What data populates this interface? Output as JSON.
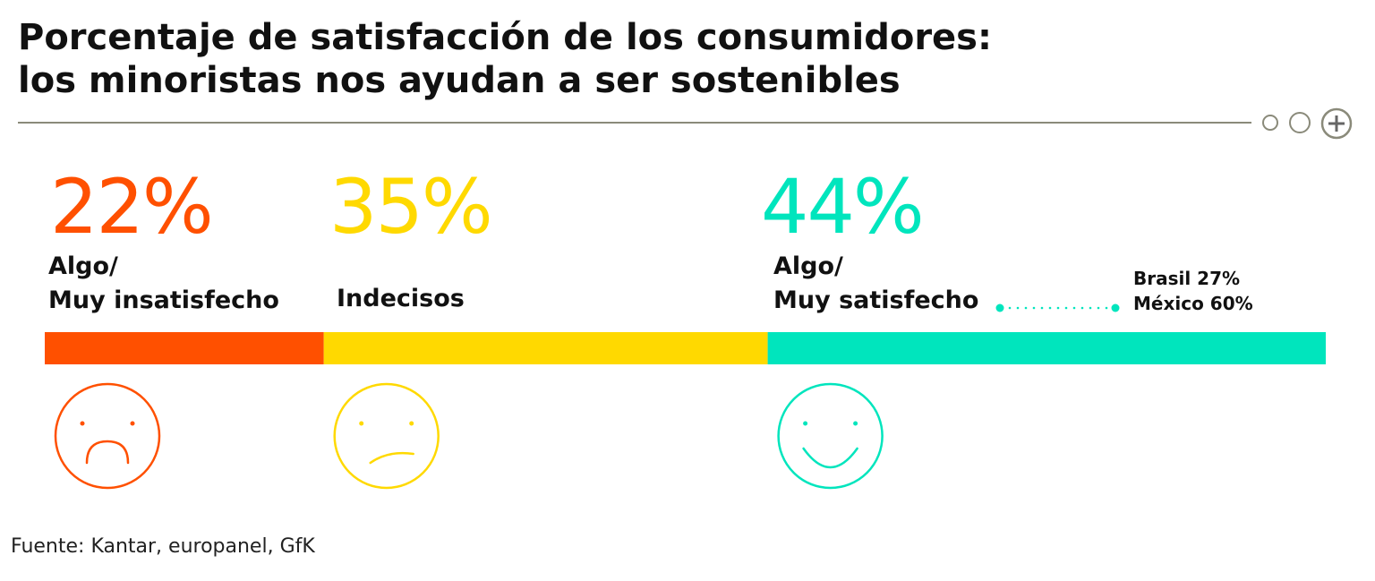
{
  "header": {
    "title_line1": "Porcentaje de satisfacción de los consumidores:",
    "title_line2": "los minoristas nos ayudan a ser sostenibles"
  },
  "chart_data": {
    "type": "bar",
    "orientation": "horizontal-stacked",
    "title": "Porcentaje de satisfacción de los consumidores: los minoristas nos ayudan a ser sostenibles",
    "segments": [
      {
        "label": "Algo/ Muy insatisfecho",
        "label_line1": "Algo/",
        "label_line2": "Muy insatisfecho",
        "value": 22,
        "value_label": "22%",
        "color": "#ff5000",
        "face": "sad-face-icon"
      },
      {
        "label": "Indecisos",
        "label_line1": "",
        "label_line2": "Indecisos",
        "value": 35,
        "value_label": "35%",
        "color": "#ffd900",
        "face": "neutral-face-icon"
      },
      {
        "label": "Algo/ Muy satisfecho",
        "label_line1": "Algo/",
        "label_line2": "Muy satisfecho",
        "value": 44,
        "value_label": "44%",
        "color": "#00e5bd",
        "face": "happy-face-icon"
      }
    ],
    "annotation": {
      "line1": "Brasil 27%",
      "line2": "México 60%"
    },
    "legend": "none",
    "grid": false
  },
  "footer": {
    "source": "Fuente: Kantar, europanel, GfK"
  },
  "icons": [
    "small-circle-icon",
    "medium-circle-icon",
    "plus-circle-icon"
  ],
  "colors": {
    "rule": "#8a8a7a",
    "text": "#111111"
  }
}
